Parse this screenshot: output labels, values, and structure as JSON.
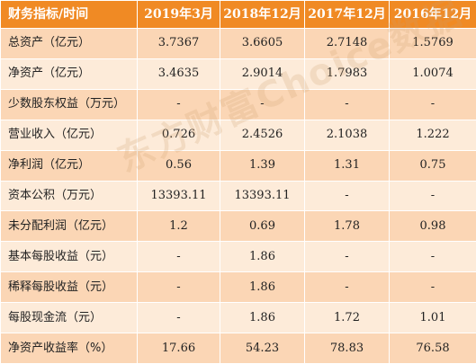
{
  "table": {
    "header": [
      "财务指标/时间",
      "2019年3月",
      "2018年12月",
      "2017年12月",
      "2016年12月"
    ],
    "rows": [
      {
        "label": "总资产（亿元）",
        "values": [
          "3.7367",
          "3.6605",
          "2.7148",
          "1.5769"
        ]
      },
      {
        "label": "净资产（亿元）",
        "values": [
          "3.4635",
          "2.9014",
          "1.7983",
          "1.0074"
        ]
      },
      {
        "label": "少数股东权益（万元）",
        "values": [
          "-",
          "-",
          "-",
          "-"
        ]
      },
      {
        "label": "营业收入（亿元）",
        "values": [
          "0.726",
          "2.4526",
          "2.1038",
          "1.222"
        ]
      },
      {
        "label": "净利润（亿元）",
        "values": [
          "0.56",
          "1.39",
          "1.31",
          "0.75"
        ]
      },
      {
        "label": "资本公积（万元）",
        "values": [
          "13393.11",
          "13393.11",
          "-",
          "-"
        ]
      },
      {
        "label": "未分配利润（亿元）",
        "values": [
          "1.2",
          "0.69",
          "1.78",
          "0.98"
        ]
      },
      {
        "label": "基本每股收益（元）",
        "values": [
          "-",
          "1.86",
          "-",
          "-"
        ]
      },
      {
        "label": "稀释每股收益（元）",
        "values": [
          "-",
          "1.86",
          "-",
          "-"
        ]
      },
      {
        "label": "每股现金流（元）",
        "values": [
          "-",
          "1.86",
          "1.72",
          "1.01"
        ]
      },
      {
        "label": "净资产收益率（%）",
        "values": [
          "17.66",
          "54.23",
          "78.83",
          "76.58"
        ]
      }
    ]
  },
  "watermark": "东方财富Choice数据",
  "colors": {
    "header_bg": "#f08a24",
    "row_odd": "#fbd6b5",
    "row_even": "#fdebd9"
  }
}
